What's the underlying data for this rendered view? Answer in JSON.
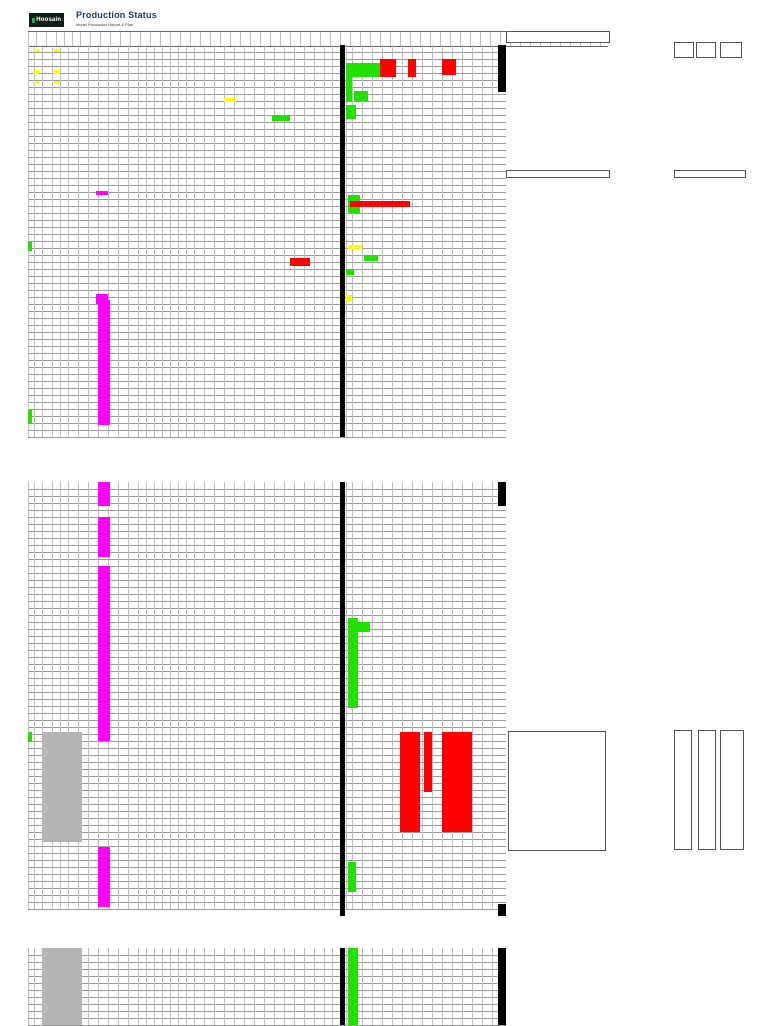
{
  "header": {
    "logo_text": "Hoosain",
    "title": "Production Status",
    "subtitle": "Model Production Report & Plan"
  },
  "sheet": {
    "accent_colors": {
      "green": "#22e000",
      "red": "#ff0000",
      "magenta": "#ff00ff",
      "yellow": "#ffff00",
      "gray": "#b5b5b5",
      "dark": "#000000"
    }
  }
}
